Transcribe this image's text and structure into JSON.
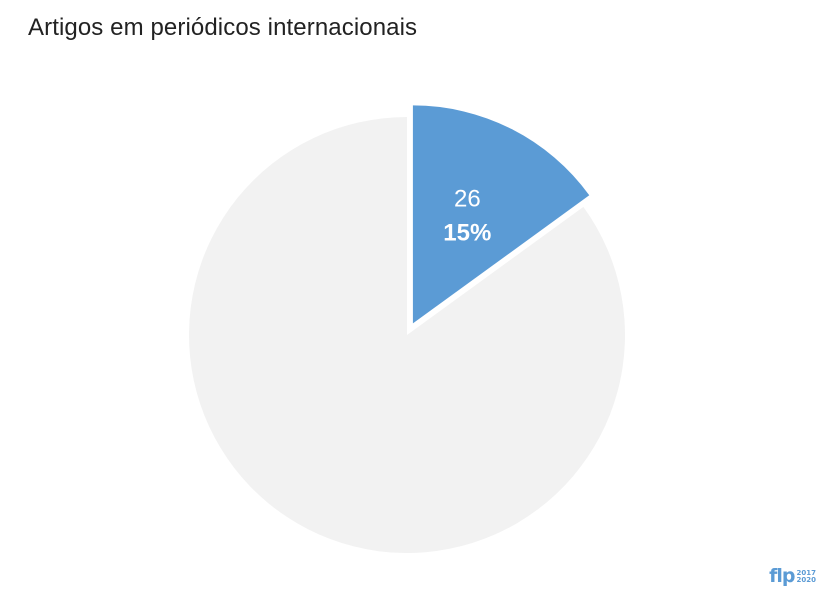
{
  "title": "Artigos em periódicos internacionais",
  "logo": {
    "mark": "flp",
    "years_top": "2017",
    "years_bottom": "2020"
  },
  "colors": {
    "highlight": "#5b9bd5",
    "rest": "#f2f2f2",
    "label_text": "#ffffff"
  },
  "chart_data": {
    "type": "pie",
    "title": "Artigos em periódicos internacionais",
    "slices": [
      {
        "value": 26,
        "percent": 15,
        "value_label": "26",
        "percent_label": "15%",
        "color": "#5b9bd5",
        "exploded": true
      },
      {
        "percent": 85,
        "color": "#f2f2f2",
        "exploded": false
      }
    ]
  }
}
